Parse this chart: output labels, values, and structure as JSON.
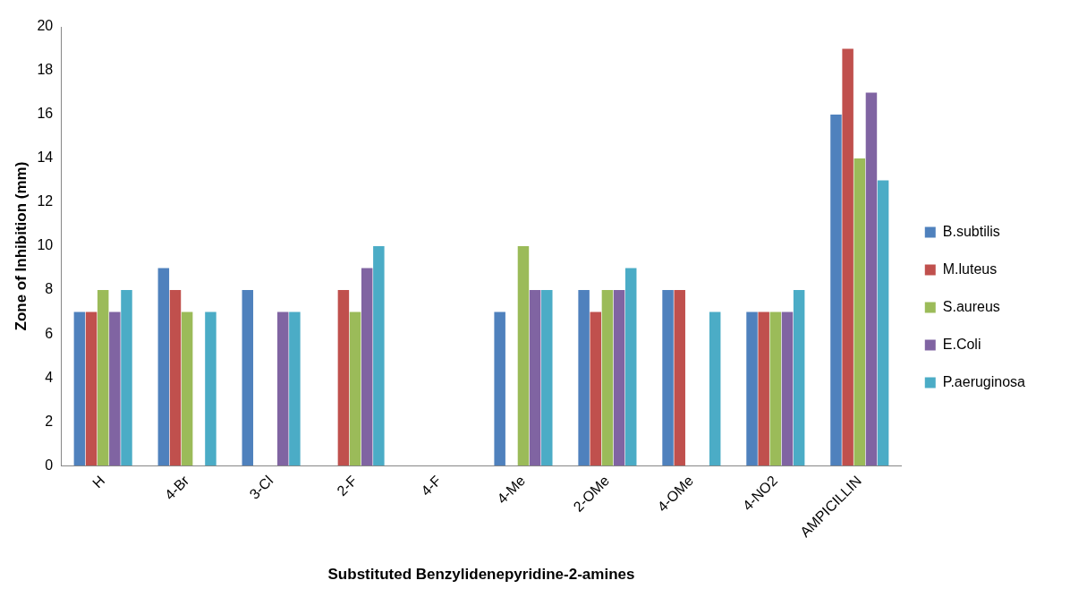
{
  "chart_data": {
    "type": "bar",
    "xlabel": "Substituted Benzylidenepyridine-2-amines",
    "ylabel": "Zone of Inhibition (mm)",
    "categories": [
      "H",
      "4-Br",
      "3-Cl",
      "2-F",
      "4-F",
      "4-Me",
      "2-OMe",
      "4-OMe",
      "4-NO2",
      "AMPICILLIN"
    ],
    "series": [
      {
        "name": "B.subtilis",
        "color": "#4f81bd",
        "values": [
          7,
          9,
          8,
          null,
          null,
          7,
          8,
          8,
          7,
          16
        ]
      },
      {
        "name": "M.luteus",
        "color": "#c0504d",
        "values": [
          7,
          8,
          null,
          8,
          null,
          null,
          7,
          8,
          7,
          19
        ]
      },
      {
        "name": "S.aureus",
        "color": "#9bbb59",
        "values": [
          8,
          7,
          null,
          7,
          null,
          10,
          8,
          null,
          7,
          14
        ]
      },
      {
        "name": "E.Coli",
        "color": "#8064a2",
        "values": [
          7,
          null,
          7,
          9,
          null,
          8,
          8,
          null,
          7,
          17
        ]
      },
      {
        "name": "P.aeruginosa",
        "color": "#4bacc6",
        "values": [
          8,
          7,
          7,
          10,
          null,
          8,
          9,
          7,
          8,
          13
        ]
      }
    ],
    "ylim": [
      0,
      20
    ],
    "yticks": [
      0,
      2,
      4,
      6,
      8,
      10,
      12,
      14,
      16,
      18,
      20
    ],
    "grid": false,
    "legend": "right"
  }
}
